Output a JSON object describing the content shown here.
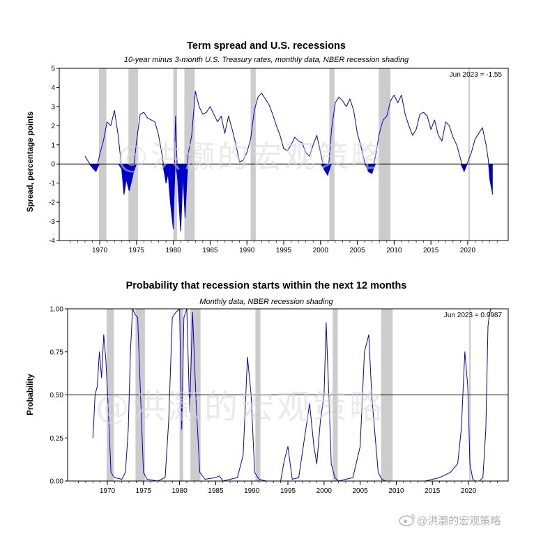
{
  "chart_data": [
    {
      "type": "line",
      "title": "Term spread and U.S. recessions",
      "subtitle": "10-year minus 3-month U.S. Treasury rates, monthly data, NBER recession shading",
      "xlabel": "",
      "ylabel": "Spread, percentage points",
      "xlim": [
        1964.5,
        2025.5
      ],
      "ylim": [
        -4,
        5
      ],
      "yticks": [
        -4,
        -3,
        -2,
        -1,
        0,
        1,
        2,
        3,
        4,
        5
      ],
      "ytick_labels": [
        "-4",
        "-3",
        "-2",
        "-1",
        "0",
        "1",
        "2",
        "3",
        "4",
        "5"
      ],
      "xticks": [
        1970,
        1975,
        1980,
        1985,
        1990,
        1995,
        2000,
        2005,
        2010,
        2015,
        2020
      ],
      "xtick_labels": [
        "1970",
        "1975",
        "1980",
        "1985",
        "1990",
        "1995",
        "2000",
        "2005",
        "2010",
        "2015",
        "2020"
      ],
      "reference_line": 0,
      "fill_below_reference": true,
      "grid": false,
      "annotation": "Jun 2023 = -1.55",
      "recessions": [
        [
          1969.9,
          1970.9
        ],
        [
          1973.9,
          1975.2
        ],
        [
          1980.0,
          1980.5
        ],
        [
          1981.5,
          1982.9
        ],
        [
          1990.5,
          1991.2
        ],
        [
          2001.2,
          2001.9
        ],
        [
          2007.9,
          2009.5
        ],
        [
          2020.1,
          2020.3
        ]
      ],
      "series": [
        {
          "color": "#0000cc",
          "x": [
            1968.0,
            1968.5,
            1969.0,
            1969.5,
            1970.0,
            1970.5,
            1971.0,
            1971.5,
            1972.0,
            1972.5,
            1973.0,
            1973.3,
            1973.6,
            1974.0,
            1974.5,
            1975.0,
            1975.5,
            1976.0,
            1976.5,
            1977.0,
            1977.5,
            1978.0,
            1978.5,
            1979.0,
            1979.3,
            1979.6,
            1980.0,
            1980.3,
            1980.6,
            1981.0,
            1981.3,
            1981.6,
            1982.0,
            1982.5,
            1983.0,
            1983.5,
            1984.0,
            1984.5,
            1985.0,
            1985.5,
            1986.0,
            1986.5,
            1987.0,
            1987.5,
            1988.0,
            1988.5,
            1989.0,
            1989.5,
            1990.0,
            1990.5,
            1991.0,
            1991.5,
            1992.0,
            1992.5,
            1993.0,
            1993.5,
            1994.0,
            1994.5,
            1995.0,
            1995.5,
            1996.0,
            1996.5,
            1997.0,
            1997.5,
            1998.0,
            1998.5,
            1999.0,
            1999.5,
            2000.0,
            2000.5,
            2001.0,
            2001.5,
            2002.0,
            2002.5,
            2003.0,
            2003.5,
            2004.0,
            2004.5,
            2005.0,
            2005.5,
            2006.0,
            2006.5,
            2007.0,
            2007.5,
            2008.0,
            2008.5,
            2009.0,
            2009.5,
            2010.0,
            2010.5,
            2011.0,
            2011.5,
            2012.0,
            2012.5,
            2013.0,
            2013.5,
            2014.0,
            2014.5,
            2015.0,
            2015.5,
            2016.0,
            2016.5,
            2017.0,
            2017.5,
            2018.0,
            2018.5,
            2019.0,
            2019.5,
            2020.0,
            2020.5,
            2021.0,
            2021.5,
            2022.0,
            2022.5,
            2022.8,
            2023.0,
            2023.4
          ],
          "values": [
            0.4,
            0.1,
            -0.2,
            -0.4,
            0.5,
            1.2,
            2.2,
            2.0,
            2.8,
            1.5,
            -0.3,
            -1.6,
            -0.8,
            -1.4,
            -0.6,
            1.2,
            2.6,
            2.7,
            2.4,
            2.3,
            2.2,
            1.5,
            0.4,
            -1.0,
            -0.5,
            -2.0,
            -3.4,
            2.5,
            -1.0,
            -3.5,
            -0.5,
            -2.8,
            0.5,
            1.5,
            3.8,
            3.0,
            2.6,
            2.7,
            3.0,
            2.6,
            2.2,
            2.5,
            1.6,
            2.5,
            1.8,
            1.0,
            0.1,
            0.2,
            0.6,
            1.3,
            2.8,
            3.5,
            3.7,
            3.4,
            3.1,
            2.6,
            2.0,
            1.5,
            0.8,
            0.7,
            1.0,
            1.4,
            1.2,
            1.1,
            0.6,
            0.4,
            1.0,
            1.5,
            0.6,
            -0.3,
            -0.6,
            1.8,
            3.2,
            3.5,
            3.3,
            3.0,
            3.4,
            2.8,
            1.6,
            0.9,
            0.1,
            -0.4,
            -0.5,
            0.5,
            1.6,
            2.3,
            2.5,
            3.3,
            3.6,
            3.2,
            3.6,
            2.6,
            2.0,
            1.5,
            1.8,
            2.6,
            2.7,
            2.5,
            1.8,
            2.3,
            1.5,
            1.2,
            2.2,
            2.0,
            1.4,
            1.0,
            0.3,
            -0.4,
            0.1,
            0.6,
            1.3,
            1.6,
            1.9,
            1.0,
            0.2,
            -0.8,
            -1.6
          ]
        }
      ]
    },
    {
      "type": "line",
      "title": "Probability that recession starts within the next 12 months",
      "subtitle": "Monthly data, NBER recession shading",
      "xlabel": "",
      "ylabel": "Probability",
      "xlim": [
        1964.5,
        2025.5
      ],
      "ylim": [
        0,
        1
      ],
      "yticks": [
        0,
        0.25,
        0.5,
        0.75,
        1
      ],
      "ytick_labels": [
        "0.00",
        "0.25",
        "0.50",
        "0.75",
        "1.00"
      ],
      "xticks": [
        1970,
        1975,
        1980,
        1985,
        1990,
        1995,
        2000,
        2005,
        2010,
        2015,
        2020
      ],
      "xtick_labels": [
        "1970",
        "1975",
        "1980",
        "1985",
        "1990",
        "1995",
        "2000",
        "2005",
        "2010",
        "2015",
        "2020"
      ],
      "reference_line": 0.5,
      "grid": false,
      "annotation": "Jun 2023 = 0.9987",
      "recessions": [
        [
          1969.9,
          1970.9
        ],
        [
          1973.9,
          1975.2
        ],
        [
          1980.0,
          1980.5
        ],
        [
          1981.5,
          1982.9
        ],
        [
          1990.5,
          1991.2
        ],
        [
          2001.2,
          2001.9
        ],
        [
          2007.9,
          2009.5
        ],
        [
          2020.1,
          2020.3
        ]
      ],
      "series": [
        {
          "color": "#0000cc",
          "x": [
            1968.0,
            1968.3,
            1968.6,
            1968.9,
            1969.2,
            1969.5,
            1969.8,
            1970.1,
            1970.5,
            1971.0,
            1972.0,
            1972.5,
            1972.9,
            1973.2,
            1973.5,
            1973.8,
            1974.2,
            1974.6,
            1975.0,
            1975.5,
            1977.0,
            1978.0,
            1978.5,
            1979.0,
            1979.5,
            1980.0,
            1980.3,
            1980.6,
            1981.0,
            1981.4,
            1981.8,
            1982.3,
            1982.8,
            1983.5,
            1985.0,
            1985.5,
            1986.0,
            1988.0,
            1988.8,
            1989.4,
            1989.9,
            1990.4,
            1991.0,
            1992.0,
            1994.0,
            1994.5,
            1995.0,
            1995.6,
            1996.5,
            1997.3,
            1998.0,
            1998.6,
            1999.0,
            1999.5,
            2000.0,
            2000.3,
            2000.7,
            2001.0,
            2001.5,
            2002.0,
            2004.0,
            2005.0,
            2005.6,
            2006.2,
            2006.6,
            2007.0,
            2007.5,
            2008.0,
            2008.5,
            2010.0,
            2012.0,
            2014.0,
            2016.0,
            2017.5,
            2018.5,
            2019.0,
            2019.5,
            2019.9,
            2020.2,
            2020.6,
            2021.0,
            2021.5,
            2022.0,
            2022.4,
            2022.7,
            2022.9,
            2023.1,
            2023.4
          ],
          "values": [
            0.25,
            0.5,
            0.55,
            0.75,
            0.6,
            0.85,
            0.7,
            0.45,
            0.05,
            0.02,
            0.01,
            0.05,
            0.3,
            0.75,
            1.0,
            0.97,
            0.95,
            0.5,
            0.05,
            0.01,
            0.0,
            0.02,
            0.35,
            0.95,
            0.98,
            1.0,
            0.3,
            0.95,
            1.0,
            0.4,
            0.98,
            0.45,
            0.05,
            0.01,
            0.02,
            0.03,
            0.0,
            0.02,
            0.15,
            0.72,
            0.5,
            0.05,
            0.01,
            0.0,
            0.0,
            0.12,
            0.2,
            0.01,
            0.02,
            0.25,
            0.45,
            0.2,
            0.1,
            0.35,
            0.5,
            0.92,
            0.45,
            0.1,
            0.02,
            0.0,
            0.02,
            0.2,
            0.75,
            0.85,
            0.5,
            0.3,
            0.05,
            0.01,
            0.0,
            0.0,
            0.0,
            0.0,
            0.02,
            0.05,
            0.1,
            0.3,
            0.75,
            0.55,
            0.1,
            0.01,
            0.0,
            0.0,
            0.02,
            0.3,
            0.9,
            0.97,
            1.0,
            1.0
          ]
        }
      ]
    }
  ],
  "watermark": {
    "text": "@洪灏的宏观策略",
    "footer_icon": "weibo-logo-icon",
    "footer_text": "@洪灏的宏观策略"
  },
  "colors": {
    "line": "#0000cc",
    "recession_band": "#cccccc",
    "axis": "#000000",
    "watermark": "#d8d8d8"
  }
}
